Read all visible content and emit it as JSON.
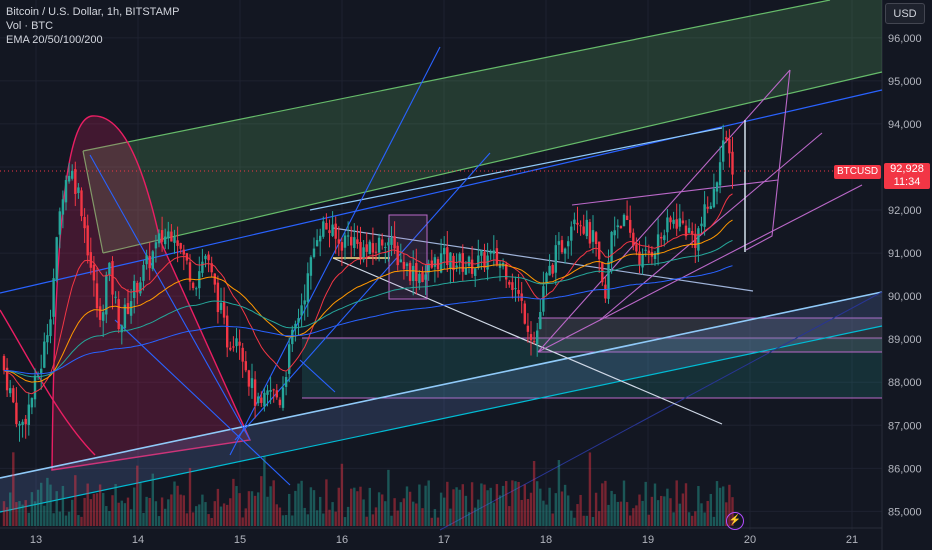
{
  "legend": {
    "title": "Bitcoin / U.S. Dollar, 1h, BITSTAMP",
    "volume": "Vol · BTC",
    "ema": "EMA 20/50/100/200"
  },
  "currency_button": "USD",
  "symbol_tag": "BTCUSD",
  "last_price": "92,928",
  "countdown": "11:34",
  "price_axis": [
    "96,000",
    "95,000",
    "94,000",
    "93,000",
    "92,000",
    "91,000",
    "90,000",
    "89,000",
    "88,000",
    "87,000",
    "86,000",
    "85,000"
  ],
  "time_axis": [
    "13",
    "14",
    "15",
    "16",
    "17",
    "18",
    "19",
    "20",
    "21"
  ],
  "colors": {
    "background": "#131722",
    "up": "#26a69a",
    "down": "#f23645",
    "grid": "#1e2230",
    "channel_green": "#66bb6a",
    "trend_blue": "#2962ff",
    "light_blue": "#90caf9",
    "purple": "#ba68c8",
    "pink": "#e91e63"
  },
  "chart_data": {
    "type": "candlestick",
    "ylim": [
      84800,
      96600
    ],
    "series_step": "1h",
    "close_start": 88600,
    "last_close": 92928
  }
}
